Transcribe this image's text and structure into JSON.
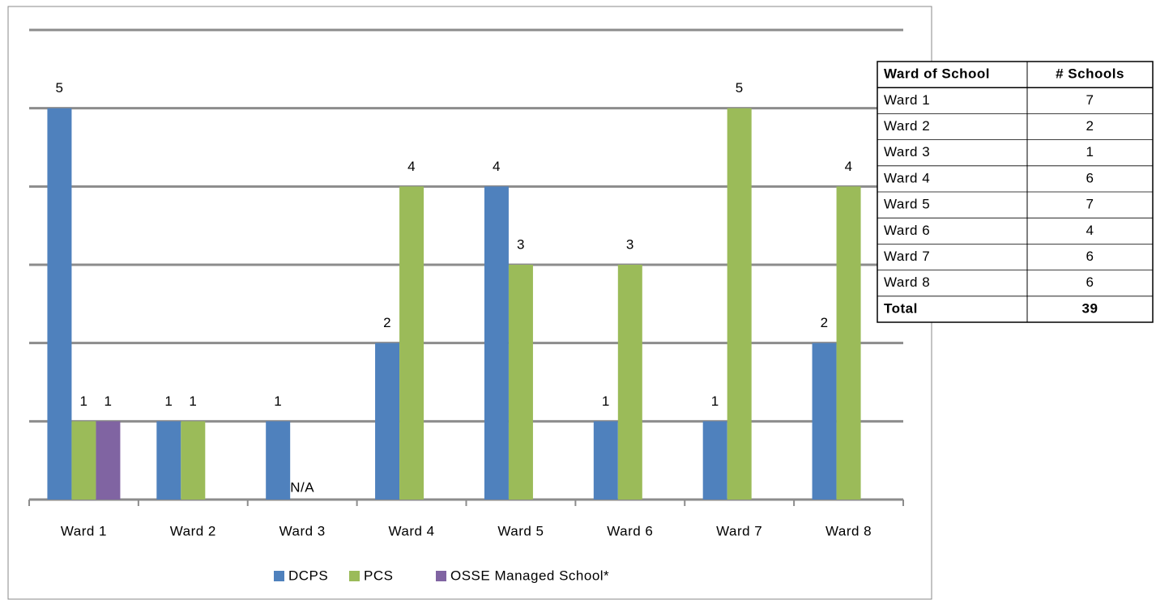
{
  "chart_data": {
    "type": "bar",
    "categories": [
      "Ward 1",
      "Ward 2",
      "Ward 3",
      "Ward 4",
      "Ward 5",
      "Ward 6",
      "Ward 7",
      "Ward 8"
    ],
    "series": [
      {
        "name": "DCPS",
        "color": "#4f81bd",
        "values": [
          5,
          1,
          1,
          2,
          4,
          1,
          1,
          2
        ]
      },
      {
        "name": "PCS",
        "color": "#9bbb59",
        "values": [
          1,
          1,
          null,
          4,
          3,
          3,
          5,
          4
        ],
        "value_labels": [
          null,
          null,
          "N/A",
          null,
          null,
          null,
          null,
          null
        ]
      },
      {
        "name": "OSSE Managed School*",
        "color": "#8064a2",
        "values": [
          1,
          null,
          null,
          null,
          null,
          null,
          null,
          null
        ]
      }
    ],
    "ylim": [
      0,
      6
    ],
    "yticks": [
      0,
      1,
      2,
      3,
      4,
      5,
      6
    ],
    "grid": true,
    "legend": "bottom"
  },
  "table": {
    "columns": [
      "Ward of School",
      "# Schools"
    ],
    "rows": [
      [
        "Ward 1",
        7
      ],
      [
        "Ward 2",
        2
      ],
      [
        "Ward 3",
        1
      ],
      [
        "Ward 4",
        6
      ],
      [
        "Ward 5",
        7
      ],
      [
        "Ward 6",
        4
      ],
      [
        "Ward 7",
        6
      ],
      [
        "Ward 8",
        6
      ]
    ],
    "total": [
      "Total",
      39
    ]
  }
}
